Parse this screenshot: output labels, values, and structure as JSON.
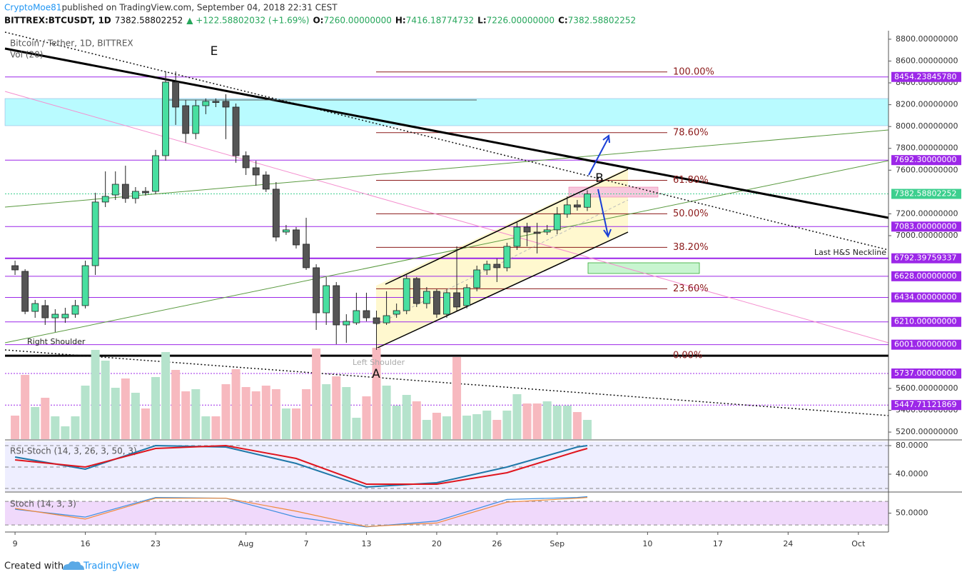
{
  "header": {
    "author": "CryptoMoe81",
    "published": " published on TradingView.com, September 04, 2018 22:31 CEST",
    "symbol": "BITTREX:BTCUSDT, 1D",
    "price": "7382.58802252",
    "change": "▲ +122.58802032 (+1.69%)",
    "ohlc": [
      {
        "label": "O:",
        "value": "7260.00000000"
      },
      {
        "label": "H:",
        "value": "7416.18774732"
      },
      {
        "label": "L:",
        "value": "7226.00000000"
      },
      {
        "label": "C:",
        "value": "7382.58802252"
      }
    ]
  },
  "footer": {
    "created": "Created with",
    "brand": "TradingView"
  },
  "chart_data": {
    "type": "candlestick",
    "title": "Bitcoin / Tether, 1D, BITTREX",
    "volume_label": "Vol (20)",
    "categories": [
      "2018-07-09",
      "2018-07-10",
      "2018-07-11",
      "2018-07-12",
      "2018-07-13",
      "2018-07-14",
      "2018-07-15",
      "2018-07-16",
      "2018-07-17",
      "2018-07-18",
      "2018-07-19",
      "2018-07-20",
      "2018-07-21",
      "2018-07-22",
      "2018-07-23",
      "2018-07-24",
      "2018-07-25",
      "2018-07-26",
      "2018-07-27",
      "2018-07-28",
      "2018-07-29",
      "2018-07-30",
      "2018-07-31",
      "2018-08-01",
      "2018-08-02",
      "2018-08-03",
      "2018-08-04",
      "2018-08-05",
      "2018-08-06",
      "2018-08-07",
      "2018-08-08",
      "2018-08-09",
      "2018-08-10",
      "2018-08-11",
      "2018-08-12",
      "2018-08-13",
      "2018-08-14",
      "2018-08-15",
      "2018-08-16",
      "2018-08-17",
      "2018-08-18",
      "2018-08-19",
      "2018-08-20",
      "2018-08-21",
      "2018-08-22",
      "2018-08-23",
      "2018-08-24",
      "2018-08-25",
      "2018-08-26",
      "2018-08-27",
      "2018-08-28",
      "2018-08-29",
      "2018-08-30",
      "2018-08-31",
      "2018-09-01",
      "2018-09-02",
      "2018-09-03",
      "2018-09-04"
    ],
    "open": [
      6725,
      6673,
      6306,
      6359,
      6247,
      6247,
      6280,
      6359,
      6725,
      7308,
      7373,
      7471,
      7341,
      7406,
      7406,
      7733,
      8407,
      8191,
      7936,
      8191,
      8231,
      8231,
      8178,
      7733,
      7622,
      7556,
      7426,
      7033,
      7053,
      6922,
      6706,
      6293,
      6542,
      6182,
      6201,
      6313,
      6247,
      6201,
      6280,
      6313,
      6607,
      6378,
      6490,
      6280,
      6477,
      6359,
      6523,
      6686,
      6738,
      6706,
      6902,
      7079,
      7033,
      7033,
      7053,
      7197,
      7282,
      7260
    ],
    "high": [
      6771,
      6693,
      6411,
      6411,
      6326,
      6339,
      6411,
      6771,
      7393,
      7589,
      7589,
      7641,
      7445,
      7445,
      7786,
      8505,
      8505,
      8244,
      8244,
      8257,
      8257,
      8296,
      8211,
      7772,
      7687,
      7589,
      7491,
      7098,
      7079,
      7164,
      6738,
      6621,
      6575,
      6280,
      6477,
      6477,
      6313,
      6490,
      6378,
      6640,
      6621,
      6529,
      6510,
      6510,
      6902,
      6555,
      6725,
      6771,
      6790,
      6935,
      7131,
      7118,
      7118,
      7098,
      7262,
      7360,
      7327,
      7416.18774732
    ],
    "low": [
      6640,
      6280,
      6247,
      6182,
      6117,
      6201,
      6247,
      6333,
      6640,
      7262,
      7327,
      7301,
      7295,
      7367,
      7380,
      7687,
      8015,
      7851,
      7884,
      8113,
      8178,
      7884,
      7668,
      7556,
      7458,
      7400,
      6948,
      7007,
      6882,
      6686,
      6136,
      6182,
      6005,
      6018,
      6182,
      6215,
      5953,
      6182,
      6247,
      6280,
      6346,
      6333,
      6247,
      6247,
      6313,
      6333,
      6490,
      6640,
      6575,
      6673,
      6869,
      6902,
      6837,
      7007,
      7013,
      7164,
      7229,
      7226
    ],
    "close": [
      6686,
      6306,
      6378,
      6247,
      6280,
      6280,
      6359,
      6725,
      7308,
      7360,
      7471,
      7341,
      7406,
      7393,
      7733,
      8407,
      8178,
      7936,
      8191,
      8231,
      8220,
      8178,
      7733,
      7622,
      7556,
      7426,
      6987,
      7053,
      6915,
      6706,
      6293,
      6542,
      6182,
      6215,
      6313,
      6247,
      6195,
      6267,
      6313,
      6607,
      6378,
      6490,
      6280,
      6477,
      6346,
      6523,
      6686,
      6738,
      6706,
      6902,
      7079,
      7033,
      7020,
      7053,
      7197,
      7282,
      7262,
      7382.58802252
    ],
    "volume": [
      33,
      90,
      45,
      58,
      32,
      18,
      32,
      75,
      125,
      110,
      72,
      85,
      65,
      43,
      87,
      122,
      97,
      67,
      70,
      32,
      32,
      77,
      98,
      73,
      67,
      75,
      70,
      43,
      43,
      70,
      127,
      77,
      88,
      73,
      30,
      60,
      128,
      75,
      47,
      62,
      53,
      27,
      37,
      32,
      115,
      33,
      35,
      40,
      27,
      40,
      63,
      50,
      50,
      53,
      47,
      47,
      38,
      27
    ],
    "up_color": "#48dfa0",
    "down_color": "#555555",
    "up_volume_color": "#b5e3cc",
    "down_volume_color": "#f7b9bf",
    "xlim": [
      "2018-07-08",
      "2018-10-04"
    ],
    "xticks": [
      {
        "value": "2018-07-09",
        "label": "9"
      },
      {
        "value": "2018-07-16",
        "label": "16"
      },
      {
        "value": "2018-07-23",
        "label": "23"
      },
      {
        "value": "2018-08-01",
        "label": "Aug"
      },
      {
        "value": "2018-08-07",
        "label": "7"
      },
      {
        "value": "2018-08-13",
        "label": "13"
      },
      {
        "value": "2018-08-20",
        "label": "20"
      },
      {
        "value": "2018-08-26",
        "label": "26"
      },
      {
        "value": "2018-09-01",
        "label": "Sep"
      },
      {
        "value": "2018-09-10",
        "label": "10"
      },
      {
        "value": "2018-09-17",
        "label": "17"
      },
      {
        "value": "2018-09-24",
        "label": "24"
      },
      {
        "value": "2018-10-01",
        "label": "Oct"
      }
    ],
    "ylim": [
      5135,
      8878
    ],
    "yticks": [
      {
        "value": 8800,
        "label": "8800.00000000"
      },
      {
        "value": 8600,
        "label": "8600.00000000"
      },
      {
        "value": 8400,
        "label": "8400.00000000"
      },
      {
        "value": 8200,
        "label": "8200.00000000"
      },
      {
        "value": 8000,
        "label": "8000.00000000"
      },
      {
        "value": 7800,
        "label": "7800.00000000"
      },
      {
        "value": 7600,
        "label": "7600.00000000"
      },
      {
        "value": 7200,
        "label": "7200.00000000"
      },
      {
        "value": 7000,
        "label": "7000.00000000"
      },
      {
        "value": 5600,
        "label": "5600.00000000"
      },
      {
        "value": 5400,
        "label": "5400.00000000"
      },
      {
        "value": 5200,
        "label": "5200.00000000"
      }
    ],
    "levels": [
      {
        "value": 8454.2384578,
        "label": "8454.23845780",
        "color": "#9c27e8",
        "style": "solid"
      },
      {
        "value": 7692.3,
        "label": "7692.30000000",
        "color": "#9c27e8",
        "style": "solid"
      },
      {
        "value": 7382.58802252,
        "label": "7382.58802252",
        "color": "#3ccf8e",
        "style": "dotted"
      },
      {
        "value": 7083,
        "label": "7083.00000000",
        "color": "#9c27e8",
        "style": "solid"
      },
      {
        "value": 6792.39759337,
        "label": "6792.39759337",
        "color": "#9c27e8",
        "style": "bold"
      },
      {
        "value": 6628,
        "label": "6628.00000000",
        "color": "#9c27e8",
        "style": "solid"
      },
      {
        "value": 6434,
        "label": "6434.00000000",
        "color": "#9c27e8",
        "style": "solid"
      },
      {
        "value": 6210,
        "label": "6210.00000000",
        "color": "#9c27e8",
        "style": "solid"
      },
      {
        "value": 6001,
        "label": "6001.00000000",
        "color": "#9c27e8",
        "style": "solid"
      },
      {
        "value": 5737,
        "label": "5737.00000000",
        "color": "#9c27e8",
        "style": "dotted"
      },
      {
        "value": 5447.71121869,
        "label": "5447.71121869",
        "color": "#9c27e8",
        "style": "dotted"
      }
    ],
    "fib": {
      "low": 5900,
      "high": 8500,
      "color": "#8b1a1a",
      "levels": [
        {
          "ratio": 100,
          "label": "100.00%"
        },
        {
          "ratio": 78.6,
          "label": "78.60%"
        },
        {
          "ratio": 61.8,
          "label": "61.80%"
        },
        {
          "ratio": 50,
          "label": "50.00%"
        },
        {
          "ratio": 38.2,
          "label": "38.20%"
        },
        {
          "ratio": 23.6,
          "label": "23.60%"
        },
        {
          "ratio": 0,
          "label": "0.00%"
        }
      ]
    },
    "annotations": {
      "e": "E",
      "b": "B",
      "a": "A",
      "right_shoulder": "Right Shoulder",
      "left_shoulder": "Left Shoulder",
      "neckline": "Last H&S Neckline"
    },
    "rsi": {
      "title": "RSI-Stoch (14, 3, 26, 3, 50, 3)",
      "ylim": [
        16,
        86
      ],
      "yticks": [
        {
          "value": 80,
          "label": "80.0000"
        },
        {
          "value": 40,
          "label": "40.0000"
        }
      ],
      "bands": [
        80,
        50,
        20
      ],
      "x": [
        "2018-07-09",
        "2018-07-16",
        "2018-07-23",
        "2018-07-30",
        "2018-08-06",
        "2018-08-13",
        "2018-08-20",
        "2018-08-27",
        "2018-09-03",
        "2018-09-04"
      ],
      "series": [
        {
          "name": "K",
          "color": "#1f78a8",
          "values": [
            64,
            47,
            80,
            78,
            55,
            22,
            28,
            50,
            78,
            80
          ]
        },
        {
          "name": "D",
          "color": "#e0151d",
          "values": [
            60,
            50,
            76,
            80,
            62,
            26,
            26,
            42,
            72,
            76
          ]
        }
      ]
    },
    "stoch": {
      "title": "Stoch (14, 3, 3)",
      "ylim": [
        2,
        102
      ],
      "yticks": [
        {
          "value": 50,
          "label": "50.0000"
        }
      ],
      "bands": [
        80,
        20
      ],
      "x": [
        "2018-07-09",
        "2018-07-16",
        "2018-07-23",
        "2018-07-30",
        "2018-08-06",
        "2018-08-13",
        "2018-08-20",
        "2018-08-27",
        "2018-09-03",
        "2018-09-04"
      ],
      "series": [
        {
          "name": "K",
          "color": "#3d8fe0",
          "values": [
            60,
            40,
            90,
            88,
            40,
            15,
            30,
            85,
            90,
            92
          ]
        },
        {
          "name": "D",
          "color": "#f08a3a",
          "values": [
            62,
            35,
            88,
            88,
            55,
            16,
            25,
            78,
            88,
            90
          ]
        }
      ]
    }
  }
}
